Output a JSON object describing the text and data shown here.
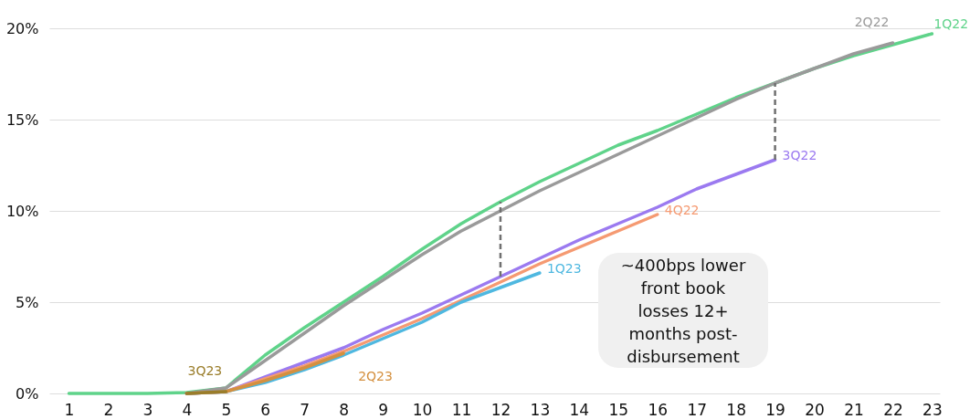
{
  "chart_data": {
    "type": "line",
    "x": [
      1,
      2,
      3,
      4,
      5,
      6,
      7,
      8,
      9,
      10,
      11,
      12,
      13,
      14,
      15,
      16,
      17,
      18,
      19,
      20,
      21,
      22,
      23
    ],
    "xlim": [
      0.5,
      23.2
    ],
    "xticks": [
      1,
      2,
      3,
      4,
      5,
      6,
      7,
      8,
      9,
      10,
      11,
      12,
      13,
      14,
      15,
      16,
      17,
      18,
      19,
      20,
      21,
      22,
      23
    ],
    "ylim": [
      0,
      20
    ],
    "yticks": [
      {
        "value": 0,
        "label": "0%"
      },
      {
        "value": 5,
        "label": "5%"
      },
      {
        "value": 10,
        "label": "10%"
      },
      {
        "value": 15,
        "label": "15%"
      },
      {
        "value": 20,
        "label": "20%"
      }
    ],
    "grid": "y",
    "series": [
      {
        "name": "1Q22",
        "color": "#5fd38a",
        "values": [
          0,
          0,
          0,
          0.05,
          0.3,
          2.1,
          3.6,
          5.0,
          6.4,
          7.9,
          9.3,
          10.5,
          11.6,
          12.6,
          13.6,
          14.4,
          15.3,
          16.2,
          17.0,
          17.8,
          18.5,
          19.1,
          19.7
        ]
      },
      {
        "name": "2Q22",
        "color": "#9a9a9a",
        "values": [
          null,
          null,
          null,
          0,
          0.3,
          1.8,
          3.3,
          4.8,
          6.2,
          7.6,
          8.9,
          10.0,
          11.1,
          12.1,
          13.1,
          14.1,
          15.1,
          16.1,
          17.0,
          17.8,
          18.6,
          19.2,
          null
        ]
      },
      {
        "name": "3Q22",
        "color": "#9b7af0",
        "values": [
          null,
          null,
          null,
          0,
          0.1,
          0.9,
          1.7,
          2.5,
          3.5,
          4.4,
          5.4,
          6.4,
          7.4,
          8.4,
          9.3,
          10.2,
          11.2,
          12.0,
          12.8,
          null,
          null,
          null,
          null
        ]
      },
      {
        "name": "4Q22",
        "color": "#f59a72",
        "values": [
          null,
          null,
          null,
          0,
          0.1,
          0.8,
          1.5,
          2.3,
          3.2,
          4.1,
          5.1,
          6.1,
          7.1,
          8.0,
          8.9,
          9.8,
          null,
          null,
          null,
          null,
          null,
          null,
          null
        ]
      },
      {
        "name": "1Q23",
        "color": "#4fb8e0",
        "values": [
          null,
          null,
          null,
          0,
          0.1,
          0.6,
          1.3,
          2.1,
          3.0,
          3.9,
          5.0,
          5.8,
          6.6,
          null,
          null,
          null,
          null,
          null,
          null,
          null,
          null,
          null,
          null
        ]
      },
      {
        "name": "2Q23",
        "color": "#d4903f",
        "values": [
          null,
          null,
          null,
          0,
          0.1,
          0.7,
          1.4,
          2.2,
          null,
          null,
          null,
          null,
          null,
          null,
          null,
          null,
          null,
          null,
          null,
          null,
          null,
          null,
          null
        ]
      },
      {
        "name": "3Q23",
        "color": "#9a7d2a",
        "values": [
          null,
          null,
          null,
          0,
          0.1,
          null,
          null,
          null,
          null,
          null,
          null,
          null,
          null,
          null,
          null,
          null,
          null,
          null,
          null,
          null,
          null,
          null,
          null
        ]
      }
    ],
    "ref_lines": [
      {
        "axis": "x",
        "value": 12,
        "line_style": "dashed",
        "color": "#707070"
      },
      {
        "axis": "x",
        "value": 19,
        "line_style": "dashed",
        "color": "#707070"
      }
    ],
    "annotations": [
      "~400bps lower front book losses 12+ months post-disbursement"
    ]
  }
}
